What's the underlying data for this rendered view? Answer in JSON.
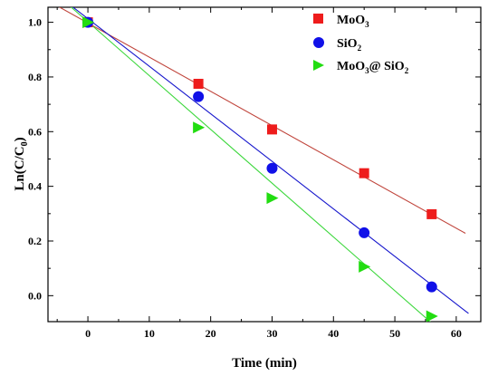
{
  "chart_data": {
    "type": "scatter",
    "xlabel": "Time (min)",
    "ylabel": "Ln(C/C",
    "ylabel_sub": "0",
    "ylabel_close": ")",
    "xlim": [
      -6.5,
      64
    ],
    "ylim": [
      -0.095,
      1.055
    ],
    "xticks": [
      0,
      10,
      20,
      30,
      40,
      50,
      60
    ],
    "yticks": [
      0.0,
      0.2,
      0.4,
      0.6,
      0.8,
      1.0
    ],
    "xtick_labels": [
      "0",
      "10",
      "20",
      "30",
      "40",
      "50",
      "60"
    ],
    "ytick_labels": [
      "0.0",
      "0.2",
      "0.4",
      "0.6",
      "0.8",
      "1.0"
    ],
    "legend_position": "top-right",
    "series": [
      {
        "name": "MoO",
        "name_sub": "3",
        "name_tail": "",
        "marker": "square",
        "color": "#ee1c1c",
        "line_color": "#c0453c",
        "x": [
          0,
          18,
          30,
          45,
          56
        ],
        "y": [
          1.0,
          0.775,
          0.608,
          0.448,
          0.298
        ],
        "fit_line": {
          "x": [
            -5,
            61.5
          ],
          "y": [
            1.06,
            0.228
          ]
        }
      },
      {
        "name": "SiO",
        "name_sub": "2",
        "name_tail": "",
        "marker": "circle",
        "color": "#1010e8",
        "line_color": "#1515cc",
        "x": [
          0,
          18,
          30,
          45,
          56
        ],
        "y": [
          1.0,
          0.728,
          0.466,
          0.23,
          0.032
        ],
        "fit_line": {
          "x": [
            -5,
            62
          ],
          "y": [
            1.1,
            -0.065
          ]
        }
      },
      {
        "name": "MoO",
        "name_sub": "3",
        "name_tail": "@ SiO",
        "name_tail_sub": "2",
        "marker": "triangle-right",
        "color": "#22dd11",
        "line_color": "#3bd73b",
        "x": [
          0,
          18,
          30,
          45,
          56
        ],
        "y": [
          1.0,
          0.615,
          0.357,
          0.106,
          -0.075
        ],
        "fit_line": {
          "x": [
            -5,
            56
          ],
          "y": [
            1.1,
            -0.1
          ]
        }
      }
    ]
  }
}
